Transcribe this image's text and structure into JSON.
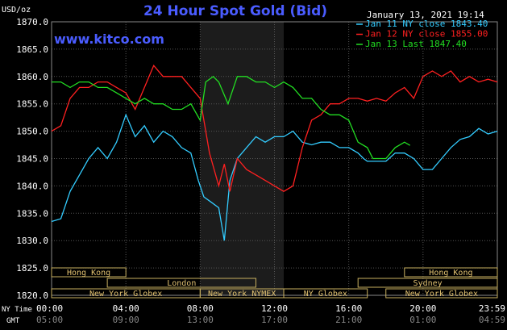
{
  "chart_data": {
    "type": "line",
    "title": "24 Hour Spot Gold (Bid)",
    "y_unit": "USD/oz",
    "watermark": "www.kitco.com",
    "timestamp": "January 13, 2021 19:14",
    "ylim": [
      1820,
      1870
    ],
    "yticks": [
      "1870.0",
      "1865.0",
      "1860.0",
      "1855.0",
      "1850.0",
      "1845.0",
      "1840.0",
      "1835.0",
      "1830.0",
      "1825.0",
      "1820.0"
    ],
    "x_labels_ny": [
      "00:00",
      "04:00",
      "08:00",
      "12:00",
      "16:00",
      "20:00",
      "23:59"
    ],
    "x_labels_gmt": [
      "05:00",
      "09:00",
      "13:00",
      "17:00",
      "21:00",
      "01:00",
      "04:59"
    ],
    "x_row_ny_label": "NY Time",
    "x_row_gmt_label": "GMT",
    "grid": true,
    "legend_position": "top-right",
    "series": [
      {
        "name": "Jan 11 NY close 1843.40",
        "color": "#33ccff",
        "points": [
          [
            0,
            1833.5
          ],
          [
            0.5,
            1834
          ],
          [
            1,
            1839
          ],
          [
            1.5,
            1842
          ],
          [
            2,
            1845
          ],
          [
            2.5,
            1847
          ],
          [
            3,
            1845
          ],
          [
            3.5,
            1848
          ],
          [
            4,
            1853
          ],
          [
            4.5,
            1849
          ],
          [
            5,
            1851
          ],
          [
            5.5,
            1848
          ],
          [
            6,
            1850
          ],
          [
            6.5,
            1849
          ],
          [
            7,
            1847
          ],
          [
            7.5,
            1846
          ],
          [
            7.9,
            1841
          ],
          [
            8.2,
            1838
          ],
          [
            8.6,
            1837
          ],
          [
            9.0,
            1836
          ],
          [
            9.3,
            1830
          ],
          [
            9.6,
            1841
          ],
          [
            10,
            1845
          ],
          [
            10.5,
            1847
          ],
          [
            11,
            1849
          ],
          [
            11.5,
            1848
          ],
          [
            12,
            1849
          ],
          [
            12.5,
            1849
          ],
          [
            13,
            1850
          ],
          [
            13.5,
            1848
          ],
          [
            14,
            1847.5
          ],
          [
            14.5,
            1848
          ],
          [
            15,
            1848
          ],
          [
            15.5,
            1847
          ],
          [
            16,
            1847
          ],
          [
            16.5,
            1846
          ],
          [
            16.8,
            1845
          ],
          [
            17,
            1844.5
          ],
          [
            18,
            1844.5
          ],
          [
            18.5,
            1846
          ],
          [
            19,
            1846
          ],
          [
            19.5,
            1845
          ],
          [
            20,
            1843
          ],
          [
            20.5,
            1843
          ],
          [
            21,
            1845
          ],
          [
            21.5,
            1847
          ],
          [
            22,
            1848.5
          ],
          [
            22.5,
            1849
          ],
          [
            23,
            1850.5
          ],
          [
            23.5,
            1849.5
          ],
          [
            24,
            1850
          ]
        ]
      },
      {
        "name": "Jan 12 NY close 1855.00",
        "color": "#ff2020",
        "points": [
          [
            0,
            1850
          ],
          [
            0.5,
            1851
          ],
          [
            1,
            1856
          ],
          [
            1.5,
            1858
          ],
          [
            2,
            1858
          ],
          [
            2.5,
            1859
          ],
          [
            3,
            1859
          ],
          [
            3.5,
            1858
          ],
          [
            4,
            1857
          ],
          [
            4.5,
            1854
          ],
          [
            5,
            1858
          ],
          [
            5.5,
            1862
          ],
          [
            6,
            1860
          ],
          [
            6.5,
            1860
          ],
          [
            7,
            1860
          ],
          [
            7.5,
            1858
          ],
          [
            8,
            1856
          ],
          [
            8.5,
            1846
          ],
          [
            9,
            1840
          ],
          [
            9.3,
            1844
          ],
          [
            9.6,
            1839
          ],
          [
            10,
            1845
          ],
          [
            10.5,
            1843
          ],
          [
            11,
            1842
          ],
          [
            11.5,
            1841
          ],
          [
            12,
            1840
          ],
          [
            12.5,
            1839
          ],
          [
            13,
            1840
          ],
          [
            13.5,
            1847
          ],
          [
            14,
            1852
          ],
          [
            14.5,
            1853
          ],
          [
            15,
            1855
          ],
          [
            15.5,
            1855
          ],
          [
            16,
            1856
          ],
          [
            16.5,
            1856
          ],
          [
            17,
            1855.5
          ],
          [
            17.5,
            1856
          ],
          [
            18,
            1855.5
          ],
          [
            18.5,
            1857
          ],
          [
            19,
            1858
          ],
          [
            19.5,
            1856
          ],
          [
            20,
            1860
          ],
          [
            20.5,
            1861
          ],
          [
            21,
            1860
          ],
          [
            21.5,
            1861
          ],
          [
            22,
            1859
          ],
          [
            22.5,
            1860
          ],
          [
            23,
            1859
          ],
          [
            23.5,
            1859.5
          ],
          [
            24,
            1859
          ]
        ]
      },
      {
        "name": "Jan 13 Last 1847.40",
        "color": "#22dd22",
        "points": [
          [
            0,
            1859
          ],
          [
            0.5,
            1859
          ],
          [
            1,
            1858
          ],
          [
            1.5,
            1859
          ],
          [
            2,
            1859
          ],
          [
            2.5,
            1858
          ],
          [
            3,
            1858
          ],
          [
            3.5,
            1857
          ],
          [
            4,
            1856
          ],
          [
            4.5,
            1855
          ],
          [
            5,
            1856
          ],
          [
            5.5,
            1855
          ],
          [
            6,
            1855
          ],
          [
            6.5,
            1854
          ],
          [
            7,
            1854
          ],
          [
            7.5,
            1855
          ],
          [
            8,
            1852
          ],
          [
            8.3,
            1859
          ],
          [
            8.7,
            1860
          ],
          [
            9,
            1859
          ],
          [
            9.5,
            1855
          ],
          [
            10,
            1860
          ],
          [
            10.5,
            1860
          ],
          [
            11,
            1859
          ],
          [
            11.5,
            1859
          ],
          [
            12,
            1858
          ],
          [
            12.5,
            1859
          ],
          [
            13,
            1858
          ],
          [
            13.5,
            1856
          ],
          [
            14,
            1856
          ],
          [
            14.5,
            1854
          ],
          [
            15,
            1853
          ],
          [
            15.5,
            1853
          ],
          [
            16,
            1852
          ],
          [
            16.5,
            1848
          ],
          [
            17,
            1847
          ],
          [
            17.3,
            1845
          ],
          [
            18,
            1845
          ],
          [
            18.5,
            1847
          ],
          [
            19,
            1848
          ],
          [
            19.3,
            1847.4
          ]
        ]
      }
    ],
    "sessions": [
      {
        "name": "Hong Kong",
        "start": 0,
        "end": 4.0,
        "row": 0
      },
      {
        "name": "London",
        "start": 3.0,
        "end": 11.0,
        "row": 1
      },
      {
        "name": "New York Globex",
        "start": 0,
        "end": 8.0,
        "row": 2
      },
      {
        "name": "New York NYMEX",
        "start": 8.0,
        "end": 12.5,
        "row": 2
      },
      {
        "name": "NY Globex",
        "start": 12.5,
        "end": 17.0,
        "row": 2
      },
      {
        "name": "Hong Kong",
        "start": 19.0,
        "end": 24.0,
        "row": 0
      },
      {
        "name": "Sydney",
        "start": 16.5,
        "end": 24.0,
        "row": 1
      },
      {
        "name": "New York Globex",
        "start": 18.0,
        "end": 24.0,
        "row": 2
      }
    ],
    "shaded_range": [
      8.0,
      12.5
    ]
  }
}
